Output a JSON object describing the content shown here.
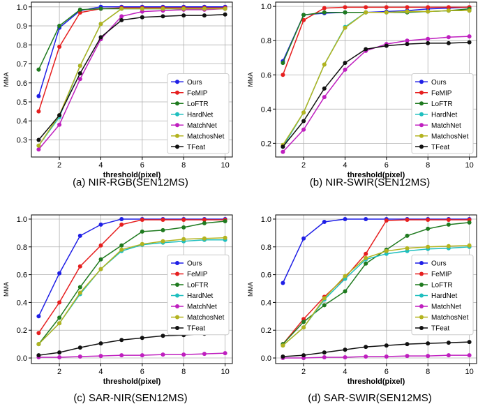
{
  "series_colors": {
    "Ours": "#1f1fe6",
    "FeMIP": "#e61f1f",
    "LoFTR": "#1f7a1f",
    "HardNet": "#1fbfbf",
    "MatchNet": "#bf1fbf",
    "MatchosNet": "#b3b31f",
    "TFeat": "#111111"
  },
  "chart_data": [
    {
      "type": "line",
      "caption": "(a) NIR-RGB(SEN12MS)",
      "xlabel": "threshold(pixel)",
      "ylabel": "MMA",
      "x": [
        1,
        2,
        3,
        4,
        5,
        6,
        7,
        8,
        9,
        10
      ],
      "xticks": [
        2,
        4,
        6,
        8,
        10
      ],
      "xlim": [
        0.65,
        10.35
      ],
      "ylim": [
        0.21,
        1.025
      ],
      "yticks": [
        0.3,
        0.4,
        0.5,
        0.6,
        0.7,
        0.8,
        0.9,
        1.0
      ],
      "ytick_labels": [
        "0.3",
        "0.4",
        "0.5",
        "0.6",
        "0.7",
        "0.8",
        "0.9",
        "1.0"
      ],
      "legend_location": "lower-right",
      "series": [
        {
          "name": "Ours",
          "values": [
            0.53,
            0.89,
            0.98,
            1.0,
            1.0,
            1.0,
            1.0,
            1.0,
            1.0,
            1.0
          ]
        },
        {
          "name": "FeMIP",
          "values": [
            0.45,
            0.79,
            0.97,
            0.99,
            0.995,
            0.995,
            0.995,
            0.995,
            0.995,
            0.995
          ]
        },
        {
          "name": "LoFTR",
          "values": [
            0.67,
            0.9,
            0.985,
            0.99,
            0.99,
            0.99,
            0.99,
            0.99,
            0.99,
            0.99
          ]
        },
        {
          "name": "HardNet",
          "values": [
            0.27,
            0.42,
            0.69,
            0.91,
            0.99,
            0.99,
            0.99,
            0.99,
            0.99,
            0.99
          ]
        },
        {
          "name": "MatchNet",
          "values": [
            0.25,
            0.38,
            0.62,
            0.83,
            0.95,
            0.975,
            0.98,
            0.985,
            0.985,
            0.99
          ]
        },
        {
          "name": "MatchosNet",
          "values": [
            0.27,
            0.43,
            0.69,
            0.91,
            0.99,
            0.99,
            0.99,
            0.99,
            0.99,
            0.99
          ]
        },
        {
          "name": "TFeat",
          "values": [
            0.3,
            0.43,
            0.65,
            0.84,
            0.93,
            0.945,
            0.95,
            0.955,
            0.955,
            0.96
          ]
        }
      ]
    },
    {
      "type": "line",
      "caption": "(b) NIR-SWIR(SEN12MS)",
      "xlabel": "threshold(pixel)",
      "ylabel": "MMA",
      "x": [
        1,
        2,
        3,
        4,
        5,
        6,
        7,
        8,
        9,
        10
      ],
      "xticks": [
        2,
        4,
        6,
        8,
        10
      ],
      "xlim": [
        0.65,
        10.35
      ],
      "ylim": [
        0.12,
        1.025
      ],
      "yticks": [
        0.2,
        0.4,
        0.6,
        0.8,
        1.0
      ],
      "ytick_labels": [
        "0.2",
        "0.4",
        "0.6",
        "0.8",
        "1.0"
      ],
      "legend_location": "lower-right",
      "series": [
        {
          "name": "Ours",
          "values": [
            0.68,
            0.95,
            0.96,
            0.965,
            0.965,
            0.97,
            0.975,
            0.985,
            0.99,
            0.995
          ]
        },
        {
          "name": "FeMIP",
          "values": [
            0.6,
            0.92,
            0.99,
            0.995,
            0.995,
            0.995,
            0.995,
            0.995,
            0.995,
            0.995
          ]
        },
        {
          "name": "LoFTR",
          "values": [
            0.67,
            0.95,
            0.965,
            0.965,
            0.965,
            0.965,
            0.965,
            0.97,
            0.975,
            0.985
          ]
        },
        {
          "name": "HardNet",
          "values": [
            0.18,
            0.38,
            0.66,
            0.88,
            0.965,
            0.965,
            0.97,
            0.97,
            0.975,
            0.975
          ]
        },
        {
          "name": "MatchNet",
          "values": [
            0.15,
            0.28,
            0.47,
            0.63,
            0.74,
            0.78,
            0.8,
            0.81,
            0.82,
            0.825
          ]
        },
        {
          "name": "MatchosNet",
          "values": [
            0.19,
            0.38,
            0.66,
            0.875,
            0.965,
            0.965,
            0.97,
            0.97,
            0.975,
            0.975
          ]
        },
        {
          "name": "TFeat",
          "values": [
            0.18,
            0.33,
            0.52,
            0.67,
            0.75,
            0.77,
            0.78,
            0.785,
            0.785,
            0.79
          ]
        }
      ]
    },
    {
      "type": "line",
      "caption": "(c) SAR-NIR(SEN12MS)",
      "xlabel": "threshold(pixel)",
      "ylabel": "MMA",
      "x": [
        1,
        2,
        3,
        4,
        5,
        6,
        7,
        8,
        9,
        10
      ],
      "xticks": [
        2,
        4,
        6,
        8,
        10
      ],
      "xlim": [
        0.65,
        10.35
      ],
      "ylim": [
        -0.04,
        1.03
      ],
      "yticks": [
        0.0,
        0.2,
        0.4,
        0.6,
        0.8,
        1.0
      ],
      "ytick_labels": [
        "0.0",
        "0.2",
        "0.4",
        "0.6",
        "0.8",
        "1.0"
      ],
      "legend_location": "center-right",
      "series": [
        {
          "name": "Ours",
          "values": [
            0.3,
            0.61,
            0.88,
            0.96,
            1.0,
            1.0,
            1.0,
            1.0,
            1.0,
            1.0
          ]
        },
        {
          "name": "FeMIP",
          "values": [
            0.18,
            0.4,
            0.66,
            0.81,
            0.96,
            0.995,
            0.995,
            0.995,
            0.995,
            0.995
          ]
        },
        {
          "name": "LoFTR",
          "values": [
            0.1,
            0.29,
            0.51,
            0.71,
            0.81,
            0.91,
            0.92,
            0.94,
            0.97,
            0.985
          ]
        },
        {
          "name": "HardNet",
          "values": [
            0.1,
            0.25,
            0.46,
            0.64,
            0.77,
            0.815,
            0.83,
            0.84,
            0.85,
            0.85
          ]
        },
        {
          "name": "MatchNet",
          "values": [
            0.005,
            0.005,
            0.01,
            0.015,
            0.02,
            0.02,
            0.025,
            0.025,
            0.03,
            0.035
          ]
        },
        {
          "name": "MatchosNet",
          "values": [
            0.1,
            0.25,
            0.47,
            0.64,
            0.78,
            0.82,
            0.84,
            0.855,
            0.86,
            0.865
          ]
        },
        {
          "name": "TFeat",
          "values": [
            0.02,
            0.04,
            0.075,
            0.105,
            0.13,
            0.145,
            0.16,
            0.165,
            0.175,
            0.18
          ]
        }
      ]
    },
    {
      "type": "line",
      "caption": "(d) SAR-SWIR(SEN12MS)",
      "xlabel": "threshold(pixel)",
      "ylabel": "MMA",
      "x": [
        1,
        2,
        3,
        4,
        5,
        6,
        7,
        8,
        9,
        10
      ],
      "xticks": [
        2,
        4,
        6,
        8,
        10
      ],
      "xlim": [
        0.65,
        10.35
      ],
      "ylim": [
        -0.04,
        1.03
      ],
      "yticks": [
        0.0,
        0.2,
        0.4,
        0.6,
        0.8,
        1.0
      ],
      "ytick_labels": [
        "0.0",
        "0.2",
        "0.4",
        "0.6",
        "0.8",
        "1.0"
      ],
      "legend_location": "center-right",
      "series": [
        {
          "name": "Ours",
          "values": [
            0.54,
            0.86,
            0.98,
            1.0,
            1.0,
            1.0,
            1.0,
            1.0,
            1.0,
            1.0
          ]
        },
        {
          "name": "FeMIP",
          "values": [
            0.1,
            0.28,
            0.44,
            0.58,
            0.75,
            0.99,
            0.995,
            0.995,
            0.995,
            0.995
          ]
        },
        {
          "name": "LoFTR",
          "values": [
            0.1,
            0.26,
            0.38,
            0.48,
            0.68,
            0.78,
            0.88,
            0.93,
            0.96,
            0.975
          ]
        },
        {
          "name": "HardNet",
          "values": [
            0.09,
            0.22,
            0.42,
            0.57,
            0.71,
            0.75,
            0.77,
            0.785,
            0.79,
            0.8
          ]
        },
        {
          "name": "MatchNet",
          "values": [
            0.0,
            0.0,
            0.005,
            0.005,
            0.01,
            0.01,
            0.015,
            0.015,
            0.02,
            0.02
          ]
        },
        {
          "name": "MatchosNet",
          "values": [
            0.09,
            0.22,
            0.43,
            0.59,
            0.72,
            0.77,
            0.79,
            0.8,
            0.805,
            0.81
          ]
        },
        {
          "name": "TFeat",
          "values": [
            0.01,
            0.02,
            0.04,
            0.06,
            0.08,
            0.09,
            0.1,
            0.105,
            0.11,
            0.115
          ]
        }
      ]
    }
  ]
}
